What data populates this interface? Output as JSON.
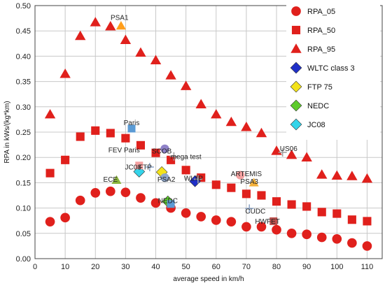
{
  "chart_data": {
    "type": "scatter",
    "xlabel": "average speed in km/h",
    "ylabel": "RPA in kWs/(kg*km)",
    "xlim": [
      0,
      115
    ],
    "ylim": [
      0,
      0.5
    ],
    "xticks": [
      0,
      10,
      20,
      30,
      40,
      50,
      60,
      70,
      80,
      90,
      100,
      110
    ],
    "yticks": [
      0.0,
      0.05,
      0.1,
      0.15,
      0.2,
      0.25,
      0.3,
      0.35,
      0.4,
      0.45,
      0.5
    ],
    "grid": true,
    "legend_position": "right",
    "series": [
      {
        "name": "RPA_05",
        "marker": "circle",
        "color": "#e0201c",
        "x": [
          5,
          10,
          15,
          20,
          25,
          30,
          35,
          40,
          45,
          50,
          55,
          60,
          65,
          70,
          75,
          80,
          85,
          90,
          95,
          100,
          105,
          110
        ],
        "y": [
          0.073,
          0.081,
          0.115,
          0.13,
          0.133,
          0.131,
          0.12,
          0.11,
          0.1,
          0.09,
          0.083,
          0.076,
          0.073,
          0.063,
          0.063,
          0.057,
          0.05,
          0.048,
          0.042,
          0.039,
          0.031,
          0.025
        ]
      },
      {
        "name": "RPA_50",
        "marker": "square",
        "color": "#e0201c",
        "x": [
          5,
          10,
          15,
          20,
          25,
          30,
          35,
          40,
          45,
          50,
          55,
          60,
          65,
          70,
          75,
          80,
          85,
          90,
          95,
          100,
          105,
          110
        ],
        "y": [
          0.169,
          0.195,
          0.241,
          0.253,
          0.248,
          0.238,
          0.224,
          0.209,
          0.195,
          0.175,
          0.16,
          0.146,
          0.14,
          0.128,
          0.125,
          0.113,
          0.107,
          0.103,
          0.092,
          0.089,
          0.077,
          0.074
        ]
      },
      {
        "name": "RPA_95",
        "marker": "triangle",
        "color": "#e0201c",
        "x": [
          5,
          10,
          15,
          20,
          25,
          30,
          35,
          40,
          45,
          50,
          55,
          60,
          65,
          70,
          75,
          80,
          85,
          90,
          95,
          100,
          105,
          110
        ],
        "y": [
          0.285,
          0.365,
          0.44,
          0.467,
          0.459,
          0.432,
          0.407,
          0.392,
          0.362,
          0.341,
          0.305,
          0.285,
          0.27,
          0.26,
          0.248,
          0.213,
          0.205,
          0.2,
          0.166,
          0.164,
          0.163,
          0.158
        ]
      },
      {
        "name": "WLTC class 3",
        "marker": "diamond",
        "color": "#1f2fc8",
        "x": [
          53
        ],
        "y": [
          0.153
        ]
      },
      {
        "name": "FTP 75",
        "marker": "diamond",
        "color": "#f3e21a",
        "x": [
          42
        ],
        "y": [
          0.171
        ]
      },
      {
        "name": "NEDC",
        "marker": "diamond",
        "color": "#5ecb2c",
        "x": [
          44
        ],
        "y": [
          0.113
        ]
      },
      {
        "name": "JC08",
        "marker": "diamond",
        "color": "#34d4ea",
        "x": [
          34.5
        ],
        "y": [
          0.172
        ]
      }
    ],
    "unlegended_markers": [
      {
        "x": 32,
        "y": 0.257,
        "marker": "square",
        "color": "#5b9bd5"
      },
      {
        "x": 28.5,
        "y": 0.46,
        "marker": "triangle",
        "color": "#ff9e1b"
      },
      {
        "x": 27,
        "y": 0.155,
        "marker": "triangle",
        "color": "#8ab43a"
      },
      {
        "x": 34.5,
        "y": 0.184,
        "marker": "square",
        "color": "#f4a0a0"
      },
      {
        "x": 38,
        "y": 0.181,
        "marker": "plus",
        "color": "#8fa6c8"
      },
      {
        "x": 43,
        "y": 0.217,
        "marker": "circle",
        "color": "#8f82c8"
      },
      {
        "x": 46,
        "y": 0.202,
        "marker": "plus",
        "color": "#a0a0a0"
      },
      {
        "x": 43,
        "y": 0.16,
        "marker": "circle",
        "color": "#8fa6c8"
      },
      {
        "x": 54,
        "y": 0.157,
        "marker": "plus",
        "color": "#a0a0a0"
      },
      {
        "x": 45,
        "y": 0.108,
        "marker": "square",
        "color": "#5b9bd5"
      },
      {
        "x": 68,
        "y": 0.165,
        "marker": "circle",
        "color": "#f4a0a0"
      },
      {
        "x": 72.5,
        "y": 0.15,
        "marker": "triangle",
        "color": "#f3b03a"
      },
      {
        "x": 71,
        "y": 0.099,
        "marker": "plus",
        "color": "#8fa6c8"
      },
      {
        "x": 79,
        "y": 0.074,
        "marker": "square",
        "color": "#c0504d"
      },
      {
        "x": 82,
        "y": 0.21,
        "marker": "plus",
        "color": "#a0a0a0"
      }
    ],
    "annotations": [
      {
        "text": "PSA1",
        "x": 28,
        "y": 0.472
      },
      {
        "text": "Paris",
        "x": 32,
        "y": 0.264
      },
      {
        "text": "FEV Paris",
        "x": 29.5,
        "y": 0.21
      },
      {
        "text": "SCOB",
        "x": 42,
        "y": 0.208
      },
      {
        "text": "mega test",
        "x": 50,
        "y": 0.197
      },
      {
        "text": "JC08",
        "x": 32.5,
        "y": 0.176
      },
      {
        "text": "FTP",
        "x": 36.5,
        "y": 0.176
      },
      {
        "text": "ECE",
        "x": 25,
        "y": 0.152
      },
      {
        "text": "PSA2",
        "x": 43.5,
        "y": 0.152
      },
      {
        "text": "WLTP",
        "x": 52.5,
        "y": 0.154
      },
      {
        "text": "ARTEMIS",
        "x": 70,
        "y": 0.163
      },
      {
        "text": "PSA3",
        "x": 71,
        "y": 0.148
      },
      {
        "text": "NEDC",
        "x": 44,
        "y": 0.11
      },
      {
        "text": "CUDC",
        "x": 73,
        "y": 0.089
      },
      {
        "text": "HWFET",
        "x": 77,
        "y": 0.069
      },
      {
        "text": "US06",
        "x": 84,
        "y": 0.213
      }
    ]
  }
}
